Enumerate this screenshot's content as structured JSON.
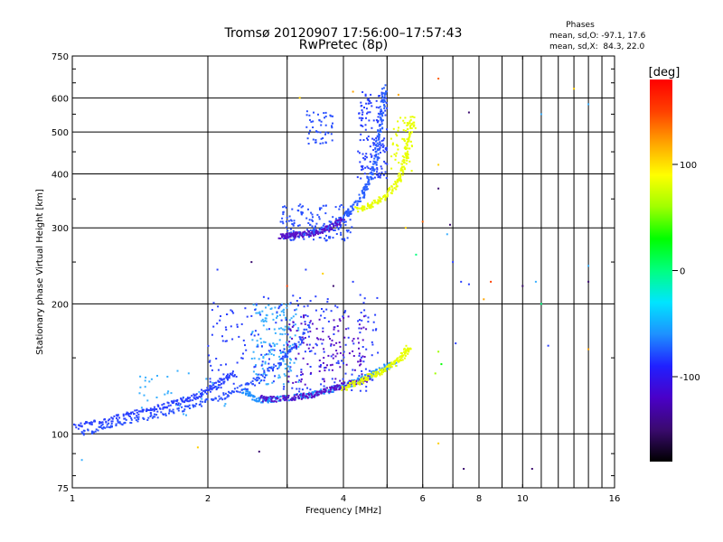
{
  "chart_data": {
    "type": "scatter",
    "title": "Tromsø 20120907 17:56:00–17:57:43",
    "subtitle": "RwPretec (8p)",
    "xlabel": "Frequency [MHz]",
    "ylabel": "Stationary phase Virtual Height [km]",
    "x_scale": "log",
    "y_scale": "log",
    "xlim": [
      1,
      16
    ],
    "ylim": [
      75,
      750
    ],
    "x_ticks": [
      1,
      2,
      4,
      6,
      8,
      10,
      16
    ],
    "x_tick_labels": [
      "1",
      "2",
      "4",
      "6",
      "8",
      "10",
      "16"
    ],
    "x_minor_ticks": [
      3,
      5,
      7,
      9,
      11,
      12,
      13,
      14,
      15
    ],
    "y_ticks": [
      75,
      100,
      200,
      300,
      400,
      500,
      600,
      750
    ],
    "y_tick_labels": [
      "75",
      "100",
      "200",
      "300",
      "400",
      "500",
      "600",
      "750"
    ],
    "grid": true,
    "stats_heading": "Phases",
    "stats_lines": [
      "mean, sd,O: -97.1, 17.6",
      "mean, sd,X:  84.3, 22.0"
    ],
    "colorbar": {
      "label": "[deg]",
      "range": [
        -180,
        180
      ],
      "ticks": [
        100,
        0,
        -100
      ],
      "tick_labels": [
        "100",
        "0",
        "-100"
      ],
      "colors": [
        "#000000",
        "#3a0a6e",
        "#4a00c8",
        "#2020ff",
        "#1e90ff",
        "#00e5ff",
        "#00ff80",
        "#00ff00",
        "#a0ff00",
        "#ffff00",
        "#ffa500",
        "#ff4000",
        "#ff0000"
      ]
    },
    "traces": [
      {
        "name": "",
        "color": "#2a40ff",
        "phase": -110,
        "points": [
          [
            1.02,
            104
          ],
          [
            1.1,
            106
          ],
          [
            1.2,
            108
          ],
          [
            1.3,
            110
          ],
          [
            1.4,
            112
          ],
          [
            1.5,
            113
          ],
          [
            1.6,
            116
          ],
          [
            1.7,
            118
          ],
          [
            1.8,
            120
          ],
          [
            1.9,
            123
          ],
          [
            2.0,
            126
          ],
          [
            2.1,
            130
          ],
          [
            2.2,
            134
          ],
          [
            2.3,
            138
          ]
        ]
      },
      {
        "name": "",
        "color": "#2a50ff",
        "phase": -105,
        "points": [
          [
            1.05,
            100
          ],
          [
            1.15,
            103
          ],
          [
            1.25,
            106
          ],
          [
            1.4,
            108
          ],
          [
            1.6,
            111
          ],
          [
            1.8,
            115
          ],
          [
            2.0,
            119
          ],
          [
            2.2,
            123
          ],
          [
            2.4,
            128
          ],
          [
            2.6,
            135
          ],
          [
            2.8,
            142
          ],
          [
            3.0,
            152
          ],
          [
            3.2,
            165
          ],
          [
            3.4,
            180
          ]
        ]
      },
      {
        "name": "",
        "color": "#1e90ff",
        "phase": -85,
        "points": [
          [
            2.4,
            125
          ],
          [
            2.5,
            122
          ],
          [
            2.6,
            120
          ],
          [
            2.7,
            120
          ],
          [
            2.8,
            120
          ],
          [
            3.0,
            121
          ],
          [
            3.2,
            122
          ],
          [
            3.4,
            123
          ],
          [
            3.6,
            125
          ],
          [
            3.8,
            127
          ],
          [
            4.0,
            129
          ],
          [
            4.2,
            131
          ],
          [
            4.4,
            134
          ],
          [
            4.6,
            137
          ],
          [
            4.8,
            140
          ],
          [
            5.0,
            143
          ],
          [
            5.2,
            146
          ]
        ]
      },
      {
        "name": "",
        "color": "#5a10c8",
        "phase": -140,
        "points": [
          [
            2.6,
            121
          ],
          [
            2.8,
            120
          ],
          [
            3.0,
            121
          ],
          [
            3.2,
            122
          ],
          [
            3.4,
            123
          ],
          [
            3.6,
            125
          ],
          [
            3.8,
            127
          ],
          [
            4.0,
            129
          ],
          [
            4.3,
            132
          ],
          [
            4.6,
            135
          ]
        ]
      },
      {
        "name": "",
        "color": "#e8ff00",
        "phase": 105,
        "points": [
          [
            4.0,
            127
          ],
          [
            4.2,
            130
          ],
          [
            4.4,
            133
          ],
          [
            4.6,
            136
          ],
          [
            4.8,
            139
          ],
          [
            5.0,
            142
          ],
          [
            5.2,
            146
          ],
          [
            5.4,
            150
          ],
          [
            5.5,
            155
          ],
          [
            5.6,
            160
          ]
        ]
      },
      {
        "name": "",
        "color": "#2a60ff",
        "phase": -100,
        "points": [
          [
            3.0,
            288
          ],
          [
            3.2,
            289
          ],
          [
            3.4,
            292
          ],
          [
            3.6,
            298
          ],
          [
            3.8,
            306
          ],
          [
            4.0,
            318
          ],
          [
            4.2,
            334
          ],
          [
            4.4,
            356
          ],
          [
            4.5,
            372
          ],
          [
            4.6,
            392
          ],
          [
            4.7,
            420
          ],
          [
            4.75,
            450
          ],
          [
            4.8,
            490
          ],
          [
            4.85,
            540
          ],
          [
            4.9,
            590
          ],
          [
            4.95,
            640
          ]
        ]
      },
      {
        "name": "",
        "color": "#5a10c8",
        "phase": -140,
        "points": [
          [
            2.9,
            288
          ],
          [
            3.0,
            287
          ],
          [
            3.1,
            288
          ],
          [
            3.2,
            289
          ],
          [
            3.4,
            291
          ],
          [
            3.6,
            296
          ],
          [
            3.8,
            303
          ],
          [
            4.0,
            314
          ]
        ]
      },
      {
        "name": "",
        "color": "#e8ff00",
        "phase": 105,
        "points": [
          [
            4.3,
            330
          ],
          [
            4.5,
            336
          ],
          [
            4.7,
            343
          ],
          [
            4.9,
            352
          ],
          [
            5.1,
            364
          ],
          [
            5.3,
            385
          ],
          [
            5.4,
            405
          ],
          [
            5.5,
            430
          ],
          [
            5.55,
            460
          ],
          [
            5.6,
            500
          ],
          [
            5.65,
            540
          ]
        ]
      }
    ],
    "scatter_clusters": [
      {
        "name": "",
        "color": "#3ab0ff",
        "phase": -75,
        "x_range": [
          2.5,
          3.2
        ],
        "y_range": [
          130,
          200
        ],
        "count": 160
      },
      {
        "name": "",
        "color": "#2a40ff",
        "phase": -110,
        "x_range": [
          2.0,
          4.8
        ],
        "y_range": [
          125,
          210
        ],
        "count": 240
      },
      {
        "name": "",
        "color": "#5a10c8",
        "phase": -140,
        "x_range": [
          3.0,
          4.5
        ],
        "y_range": [
          130,
          190
        ],
        "count": 120
      },
      {
        "name": "",
        "color": "#2a50ff",
        "phase": -105,
        "x_range": [
          2.9,
          4.2
        ],
        "y_range": [
          280,
          340
        ],
        "count": 150
      },
      {
        "name": "",
        "color": "#2a40ff",
        "phase": -110,
        "x_range": [
          4.3,
          5.0
        ],
        "y_range": [
          390,
          620
        ],
        "count": 160
      },
      {
        "name": "",
        "color": "#2a50ff",
        "phase": -105,
        "x_range": [
          3.3,
          3.8
        ],
        "y_range": [
          470,
          560
        ],
        "count": 50
      },
      {
        "name": "",
        "color": "#e8ff00",
        "phase": 105,
        "x_range": [
          5.1,
          5.8
        ],
        "y_range": [
          400,
          550
        ],
        "count": 50
      },
      {
        "name": "",
        "color": "#3ab0ff",
        "phase": -75,
        "x_range": [
          1.4,
          2.2
        ],
        "y_range": [
          110,
          140
        ],
        "count": 40
      }
    ],
    "sparse_points": [
      {
        "x": 6.5,
        "y": 665,
        "color": "#ff6000"
      },
      {
        "x": 7.6,
        "y": 555,
        "color": "#3a0a6e"
      },
      {
        "x": 11.0,
        "y": 550,
        "color": "#3ab0ff"
      },
      {
        "x": 13.0,
        "y": 630,
        "color": "#ffd000"
      },
      {
        "x": 14.0,
        "y": 580,
        "color": "#3ab0ff"
      },
      {
        "x": 6.5,
        "y": 420,
        "color": "#ffd000"
      },
      {
        "x": 6.5,
        "y": 370,
        "color": "#3a0a6e"
      },
      {
        "x": 6.9,
        "y": 305,
        "color": "#3a0a6e"
      },
      {
        "x": 7.0,
        "y": 250,
        "color": "#2a40ff"
      },
      {
        "x": 7.3,
        "y": 225,
        "color": "#2a40ff"
      },
      {
        "x": 7.6,
        "y": 222,
        "color": "#2a40ff"
      },
      {
        "x": 8.2,
        "y": 205,
        "color": "#ffa500"
      },
      {
        "x": 8.5,
        "y": 225,
        "color": "#ff4000"
      },
      {
        "x": 10.0,
        "y": 220,
        "color": "#3a0a6e"
      },
      {
        "x": 10.7,
        "y": 225,
        "color": "#3ab0ff"
      },
      {
        "x": 11.0,
        "y": 200,
        "color": "#00ff80"
      },
      {
        "x": 14.0,
        "y": 225,
        "color": "#3a0a6e"
      },
      {
        "x": 14.0,
        "y": 245,
        "color": "#3ab0ff"
      },
      {
        "x": 11.4,
        "y": 160,
        "color": "#2a40ff"
      },
      {
        "x": 14.0,
        "y": 157,
        "color": "#ffa500"
      },
      {
        "x": 6.6,
        "y": 145,
        "color": "#00ff00"
      },
      {
        "x": 6.5,
        "y": 155,
        "color": "#a0ff00"
      },
      {
        "x": 6.4,
        "y": 138,
        "color": "#a0ff00"
      },
      {
        "x": 7.1,
        "y": 162,
        "color": "#2a40ff"
      },
      {
        "x": 1.9,
        "y": 93,
        "color": "#ffd000"
      },
      {
        "x": 2.6,
        "y": 91,
        "color": "#3a0a6e"
      },
      {
        "x": 6.5,
        "y": 95,
        "color": "#ffd000"
      },
      {
        "x": 7.4,
        "y": 83,
        "color": "#3a0a6e"
      },
      {
        "x": 10.5,
        "y": 83,
        "color": "#3a0a6e"
      },
      {
        "x": 1.05,
        "y": 87,
        "color": "#3ab0ff"
      },
      {
        "x": 2.1,
        "y": 240,
        "color": "#2a40ff"
      },
      {
        "x": 2.5,
        "y": 250,
        "color": "#3a0a6e"
      },
      {
        "x": 3.3,
        "y": 240,
        "color": "#2a40ff"
      },
      {
        "x": 3.6,
        "y": 235,
        "color": "#ffd000"
      },
      {
        "x": 3.8,
        "y": 220,
        "color": "#3a0a6e"
      },
      {
        "x": 4.2,
        "y": 225,
        "color": "#2a40ff"
      },
      {
        "x": 3.0,
        "y": 220,
        "color": "#ff4000"
      },
      {
        "x": 5.8,
        "y": 260,
        "color": "#00ff80"
      },
      {
        "x": 5.3,
        "y": 610,
        "color": "#ffa500"
      },
      {
        "x": 3.2,
        "y": 600,
        "color": "#ffd000"
      },
      {
        "x": 4.2,
        "y": 620,
        "color": "#ffa500"
      },
      {
        "x": 5.5,
        "y": 300,
        "color": "#ffd000"
      },
      {
        "x": 6.0,
        "y": 310,
        "color": "#ff6000"
      },
      {
        "x": 6.8,
        "y": 290,
        "color": "#3ab0ff"
      }
    ]
  }
}
